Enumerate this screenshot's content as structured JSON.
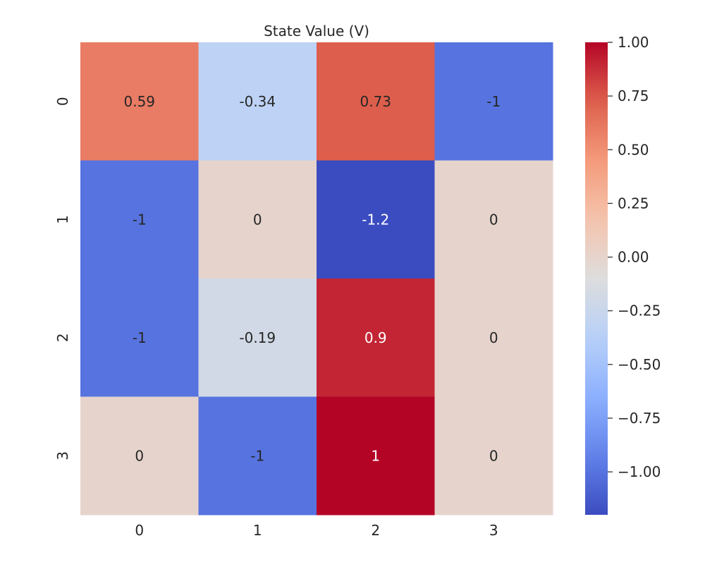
{
  "chart_data": {
    "type": "heatmap",
    "title": "State Value (V)",
    "xlabel": "",
    "ylabel": "",
    "x_categories": [
      "0",
      "1",
      "2",
      "3"
    ],
    "y_categories": [
      "0",
      "1",
      "2",
      "3"
    ],
    "values": [
      [
        0.59,
        -0.34,
        0.73,
        -1
      ],
      [
        -1,
        0,
        -1.2,
        0
      ],
      [
        -1,
        -0.19,
        0.9,
        0
      ],
      [
        0,
        -1,
        1,
        0
      ]
    ],
    "value_labels": [
      [
        "0.59",
        "-0.34",
        "0.73",
        "-1"
      ],
      [
        "-1",
        "0",
        "-1.2",
        "0"
      ],
      [
        "-1",
        "-0.19",
        "0.9",
        "0"
      ],
      [
        "0",
        "-1",
        "1",
        "0"
      ]
    ],
    "colormap": "coolwarm",
    "vmin": -1.2,
    "vmax": 1.0,
    "colorbar": {
      "ticks": [
        1.0,
        0.75,
        0.5,
        0.25,
        0.0,
        -0.25,
        -0.5,
        -0.75,
        -1.0
      ],
      "tick_labels": [
        "1.00",
        "0.75",
        "0.50",
        "0.25",
        "0.00",
        "−0.25",
        "−0.50",
        "−0.75",
        "−1.00"
      ]
    }
  },
  "colors": {
    "background": "#ffffff",
    "text_dark": "#262626",
    "text_light": "#ffffff"
  }
}
